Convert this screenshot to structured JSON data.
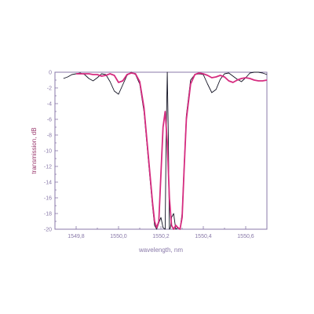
{
  "chart_data": {
    "type": "line",
    "title": "",
    "xlabel": "wavelength, nm",
    "ylabel": "transmission, dB",
    "xlim": [
      1549.7,
      1550.7
    ],
    "ylim": [
      -20,
      0
    ],
    "xticks": [
      1549.8,
      1550.0,
      1550.2,
      1550.4,
      1550.6
    ],
    "xtick_labels": [
      "1549,8",
      "1550,0",
      "1550,2",
      "1550,4",
      "1550,6"
    ],
    "yticks": [
      0,
      -2,
      -4,
      -6,
      -8,
      -10,
      -12,
      -14,
      -16,
      -18,
      -20
    ],
    "ytick_labels": [
      "0",
      "-2",
      "-4",
      "-6",
      "-8",
      "-10",
      "-12",
      "-14",
      "-16",
      "-18",
      "-20"
    ],
    "grid": false,
    "legend": "none",
    "colors": {
      "axis": "#8878a8",
      "label": "#9a3a6e",
      "series_black": "#111122",
      "series_magenta": "#d62c80"
    },
    "series": [
      {
        "color": "#111122",
        "x": [
          1549.74,
          1549.76,
          1549.78,
          1549.8,
          1549.82,
          1549.84,
          1549.86,
          1549.88,
          1549.9,
          1549.92,
          1549.94,
          1549.96,
          1549.98,
          1550.0,
          1550.02,
          1550.04,
          1550.06,
          1550.08,
          1550.1,
          1550.12,
          1550.14,
          1550.16,
          1550.17,
          1550.18,
          1550.19,
          1550.2,
          1550.21,
          1550.22,
          1550.225,
          1550.23,
          1550.235,
          1550.24,
          1550.245,
          1550.25,
          1550.26,
          1550.27,
          1550.28,
          1550.29,
          1550.3,
          1550.31,
          1550.32,
          1550.34,
          1550.36,
          1550.38,
          1550.4,
          1550.42,
          1550.44,
          1550.46,
          1550.48,
          1550.5,
          1550.52,
          1550.54,
          1550.56,
          1550.58,
          1550.6,
          1550.62,
          1550.64,
          1550.66,
          1550.68,
          1550.7
        ],
        "y": [
          -0.8,
          -0.6,
          -0.3,
          -0.2,
          -0.1,
          -0.3,
          -0.8,
          -1.1,
          -0.7,
          -0.2,
          -0.3,
          -1.2,
          -2.4,
          -2.8,
          -1.6,
          -0.4,
          0.0,
          -0.3,
          -1.5,
          -5.0,
          -11.0,
          -17.0,
          -19.5,
          -20.0,
          -19.2,
          -18.5,
          -19.8,
          -20.0,
          -8.0,
          0.0,
          -8.0,
          -20.0,
          -19.8,
          -18.5,
          -18.0,
          -20.0,
          -19.8,
          -20.0,
          -18.0,
          -11.5,
          -5.5,
          -1.0,
          -0.3,
          -0.2,
          -0.3,
          -1.5,
          -2.6,
          -2.2,
          -0.9,
          -0.2,
          -0.1,
          -0.5,
          -0.9,
          -1.2,
          -0.7,
          -0.1,
          0.0,
          0.0,
          -0.1,
          -0.3
        ]
      },
      {
        "color": "#d62c80",
        "x": [
          1549.8,
          1549.82,
          1549.84,
          1549.86,
          1549.88,
          1549.9,
          1549.92,
          1549.94,
          1549.96,
          1549.98,
          1550.0,
          1550.02,
          1550.04,
          1550.06,
          1550.08,
          1550.1,
          1550.12,
          1550.14,
          1550.16,
          1550.17,
          1550.18,
          1550.19,
          1550.2,
          1550.21,
          1550.22,
          1550.23,
          1550.24,
          1550.25,
          1550.26,
          1550.27,
          1550.28,
          1550.29,
          1550.3,
          1550.31,
          1550.32,
          1550.34,
          1550.36,
          1550.38,
          1550.4,
          1550.42,
          1550.44,
          1550.46,
          1550.48,
          1550.5,
          1550.52,
          1550.54,
          1550.56,
          1550.58,
          1550.6,
          1550.62,
          1550.64,
          1550.66,
          1550.68,
          1550.7
        ],
        "y": [
          -0.2,
          -0.2,
          -0.2,
          -0.2,
          -0.3,
          -0.3,
          -0.5,
          -0.4,
          -0.2,
          -0.4,
          -1.3,
          -1.1,
          -0.3,
          -0.1,
          -0.2,
          -1.2,
          -4.5,
          -10.5,
          -16.5,
          -19.0,
          -19.8,
          -19.0,
          -13.0,
          -7.0,
          -5.0,
          -9.0,
          -16.0,
          -19.5,
          -20.0,
          -19.5,
          -19.8,
          -20.0,
          -18.5,
          -12.0,
          -6.0,
          -1.5,
          -0.3,
          -0.1,
          -0.2,
          -0.4,
          -0.7,
          -0.6,
          -0.4,
          -0.6,
          -1.1,
          -1.3,
          -1.0,
          -0.8,
          -0.7,
          -0.8,
          -1.0,
          -1.1,
          -1.1,
          -1.0
        ]
      }
    ]
  }
}
